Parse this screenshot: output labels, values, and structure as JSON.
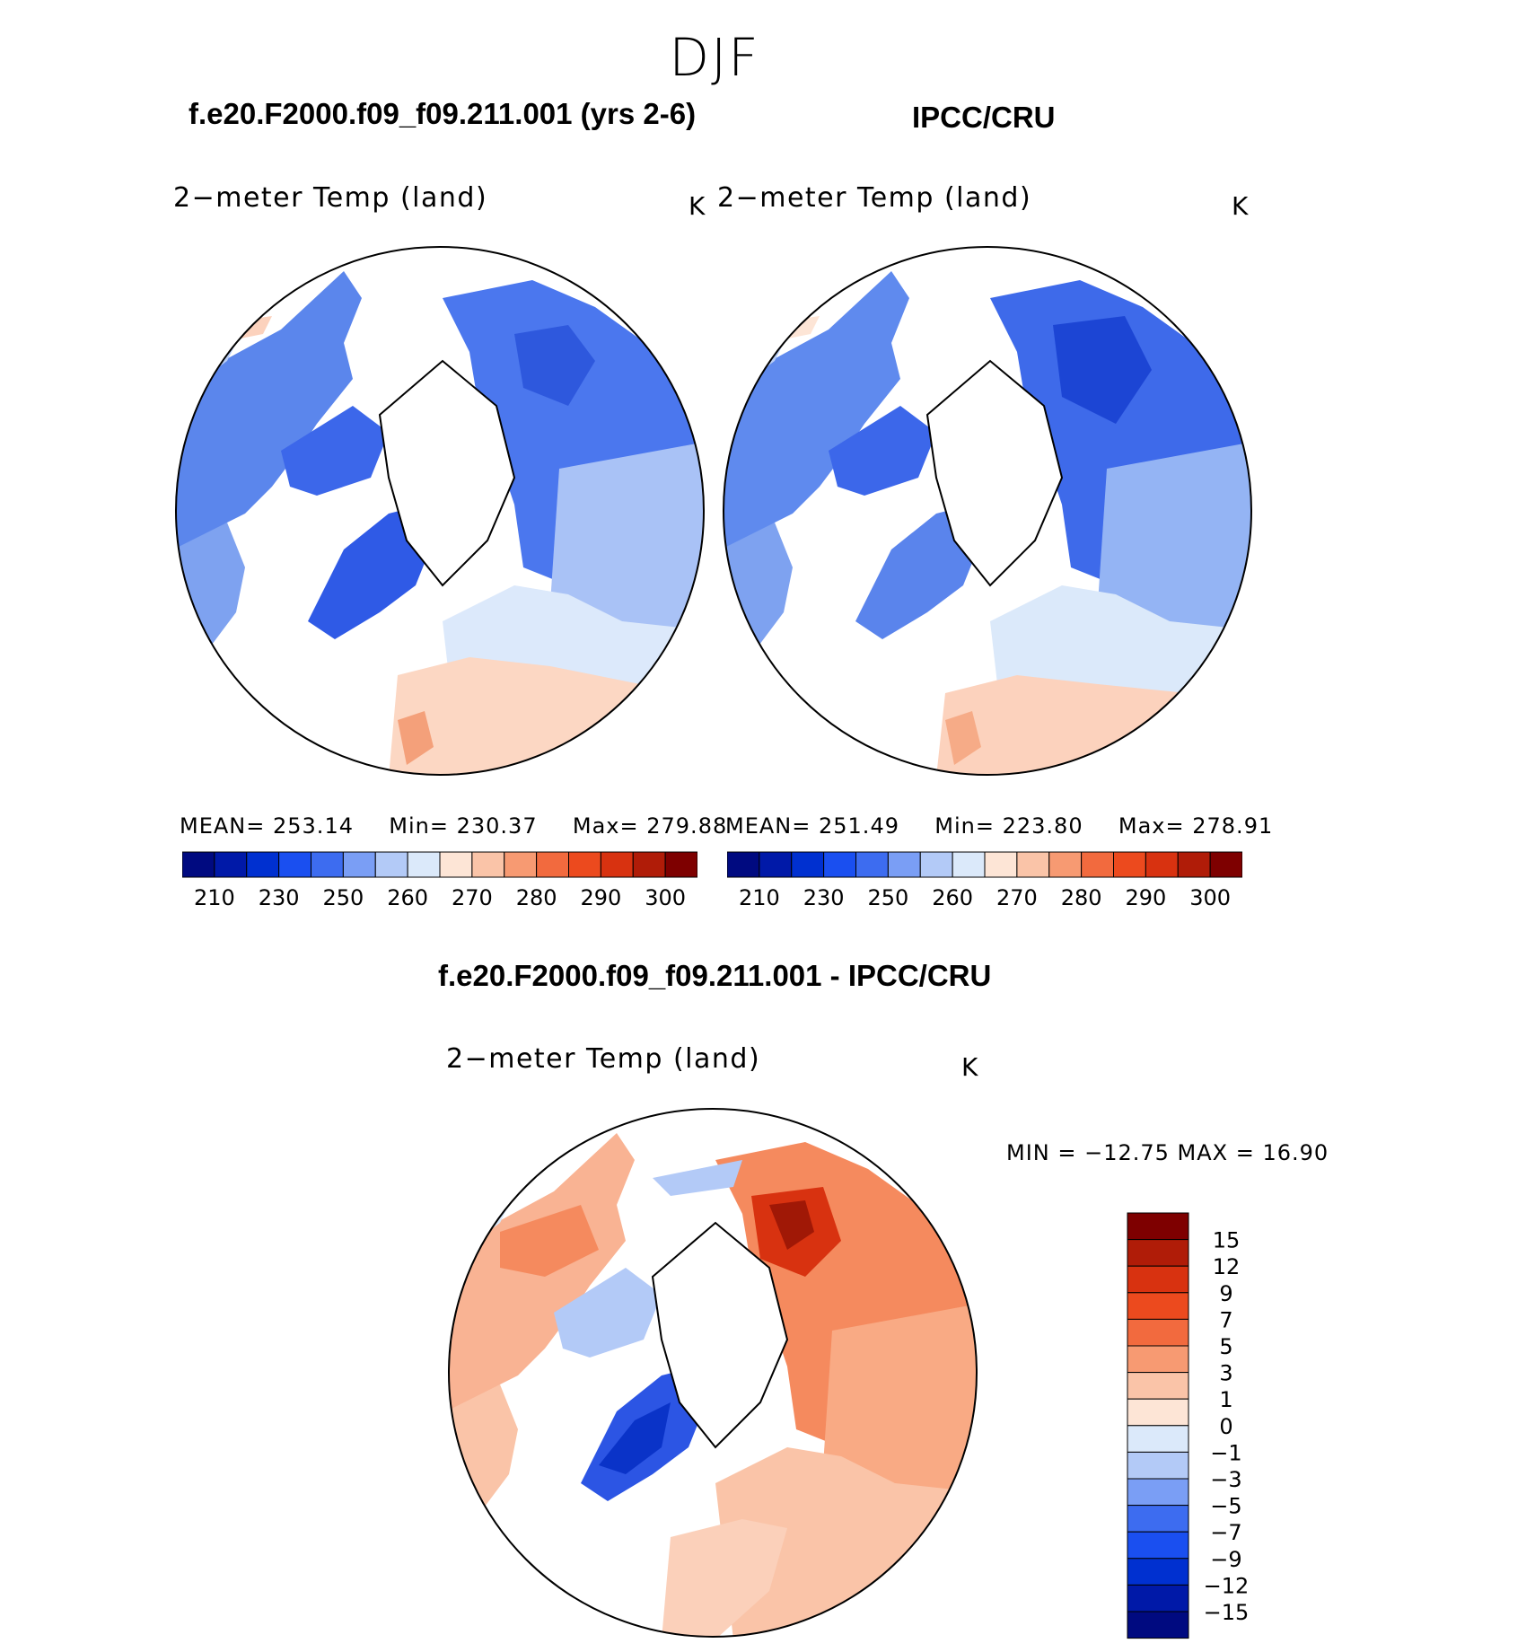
{
  "season": "DJF",
  "left_panel": {
    "case_title": "f.e20.F2000.f09_f09.211.001 (yrs 2-6)",
    "label": "2−meter Temp (land)",
    "unit": "K",
    "mean_label": "MEAN=",
    "mean": "253.14",
    "min_label": "Min=",
    "min": "230.37",
    "max_label": "Max=",
    "max": "279.88"
  },
  "right_panel": {
    "case_title": "IPCC/CRU",
    "label": "2−meter Temp (land)",
    "unit": "K",
    "mean_label": "MEAN=",
    "mean": "251.49",
    "min_label": "Min=",
    "min": "223.80",
    "max_label": "Max=",
    "max": "278.91"
  },
  "diff_panel": {
    "case_title": "f.e20.F2000.f09_f09.211.001 - IPCC/CRU",
    "label": "2−meter Temp (land)",
    "unit": "K",
    "minmax": "MIN = −12.75 MAX =   16.90"
  },
  "abs_colorbar": {
    "colors": [
      "#000a80",
      "#0019a8",
      "#0030d0",
      "#1a4ff0",
      "#3d6cf0",
      "#7a9ef5",
      "#b3caf7",
      "#dbe9fa",
      "#fde5d6",
      "#fac4a8",
      "#f79a72",
      "#f26a3e",
      "#ec4a1e",
      "#d83210",
      "#b01c08",
      "#7e0000"
    ],
    "tick_labels": [
      "210",
      "230",
      "250",
      "260",
      "270",
      "280",
      "290",
      "300"
    ]
  },
  "diff_colorbar": {
    "colors": [
      "#7e0000",
      "#b01c08",
      "#d83210",
      "#ec4a1e",
      "#f26a3e",
      "#f79a72",
      "#fac4a8",
      "#fde5d6",
      "#dbe9fa",
      "#b3caf7",
      "#7a9ef5",
      "#3d6cf0",
      "#1a4ff0",
      "#0030d0",
      "#0019a8",
      "#000a80"
    ],
    "tick_labels": [
      "15",
      "12",
      "9",
      "7",
      "5",
      "3",
      "1",
      "0",
      "−1",
      "−3",
      "−5",
      "−7",
      "−9",
      "−12",
      "−15"
    ]
  }
}
